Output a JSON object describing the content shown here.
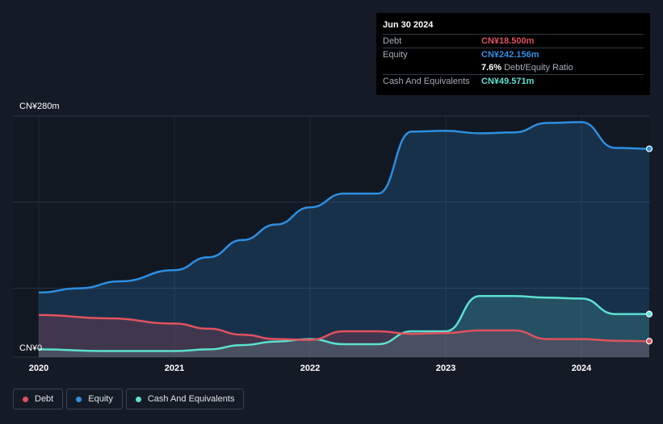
{
  "tooltip": {
    "date": "Jun 30 2024",
    "debt_label": "Debt",
    "debt_value": "CN¥18.500m",
    "equity_label": "Equity",
    "equity_value": "CN¥242.156m",
    "ratio_value": "7.6%",
    "ratio_label": "Debt/Equity Ratio",
    "cash_label": "Cash And Equivalents",
    "cash_value": "CN¥49.571m"
  },
  "legend": [
    {
      "label": "Debt",
      "color": "#e0525e"
    },
    {
      "label": "Equity",
      "color": "#2d8fe0"
    },
    {
      "label": "Cash And Equivalents",
      "color": "#5ce0cf"
    }
  ],
  "chart_data": {
    "type": "area",
    "y_top_label": "CN¥280m",
    "y_bottom_label": "CN¥0",
    "ylim": [
      0,
      280
    ],
    "xlim": [
      2020.0,
      2024.5
    ],
    "x_ticks": [
      "2020",
      "2021",
      "2022",
      "2023",
      "2024"
    ],
    "x_tick_values": [
      2020,
      2021,
      2022,
      2023,
      2024
    ],
    "series": [
      {
        "name": "Equity",
        "color": "#2d8fe0",
        "points": [
          [
            2020.0,
            75
          ],
          [
            2020.3,
            80
          ],
          [
            2020.6,
            88
          ],
          [
            2021.0,
            101
          ],
          [
            2021.25,
            116
          ],
          [
            2021.5,
            136
          ],
          [
            2021.75,
            154
          ],
          [
            2022.0,
            174
          ],
          [
            2022.25,
            190
          ],
          [
            2022.5,
            190
          ],
          [
            2022.75,
            262
          ],
          [
            2023.0,
            263
          ],
          [
            2023.25,
            260
          ],
          [
            2023.5,
            261
          ],
          [
            2023.75,
            272
          ],
          [
            2024.0,
            273
          ],
          [
            2024.25,
            243
          ],
          [
            2024.5,
            242
          ]
        ]
      },
      {
        "name": "Cash And Equivalents",
        "color": "#5ce0cf",
        "points": [
          [
            2020.0,
            9
          ],
          [
            2020.5,
            7
          ],
          [
            2021.0,
            7
          ],
          [
            2021.25,
            9
          ],
          [
            2021.5,
            14
          ],
          [
            2021.75,
            18
          ],
          [
            2022.0,
            21
          ],
          [
            2022.25,
            15
          ],
          [
            2022.5,
            15
          ],
          [
            2022.75,
            30
          ],
          [
            2023.0,
            30
          ],
          [
            2023.25,
            71
          ],
          [
            2023.5,
            71
          ],
          [
            2023.75,
            69
          ],
          [
            2024.0,
            68
          ],
          [
            2024.25,
            50
          ],
          [
            2024.5,
            50
          ]
        ]
      },
      {
        "name": "Debt",
        "color": "#e0525e",
        "points": [
          [
            2020.0,
            49
          ],
          [
            2020.5,
            45
          ],
          [
            2021.0,
            39
          ],
          [
            2021.25,
            33
          ],
          [
            2021.5,
            26
          ],
          [
            2021.75,
            21
          ],
          [
            2022.0,
            20
          ],
          [
            2022.25,
            30
          ],
          [
            2022.5,
            30
          ],
          [
            2022.75,
            27
          ],
          [
            2023.0,
            28
          ],
          [
            2023.25,
            31
          ],
          [
            2023.5,
            31
          ],
          [
            2023.75,
            21
          ],
          [
            2024.0,
            21
          ],
          [
            2024.25,
            19
          ],
          [
            2024.5,
            18.5
          ]
        ]
      }
    ]
  }
}
